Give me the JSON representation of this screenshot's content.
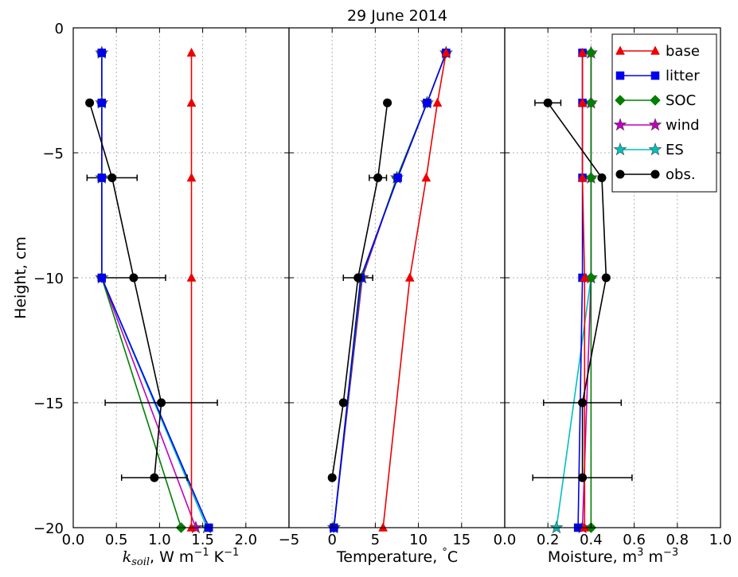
{
  "title": "29 June 2014",
  "ylabel": "Height, cm",
  "yticks": [
    "0",
    "−5",
    "−10",
    "−15",
    "−20"
  ],
  "colors": {
    "base": "#ee0000",
    "litter": "#0000ee",
    "SOC": "#007f00",
    "wind": "#bf00bf",
    "ES": "#00bfbf",
    "obs.": "#000000"
  },
  "legend": [
    "base",
    "litter",
    "SOC",
    "wind",
    "ES",
    "obs."
  ],
  "chart_data": [
    {
      "type": "line",
      "panel": "ksoil",
      "xlabel_math": "k",
      "xlabel_sub": "soil",
      "xlabel_rest": ", W m",
      "xlabel_exp1": "−1",
      "xlabel_mid": " K",
      "xlabel_exp2": "−1",
      "xlim": [
        0,
        2.5
      ],
      "ylim": [
        -20,
        0
      ],
      "xticks": [
        "0.0",
        "0.5",
        "1.0",
        "1.5",
        "2.0"
      ],
      "series": [
        {
          "name": "base",
          "marker": "triangle",
          "x": [
            1.37,
            1.37,
            1.37,
            1.37,
            1.37
          ],
          "y": [
            -1,
            -3,
            -6,
            -10,
            -20
          ]
        },
        {
          "name": "litter",
          "marker": "square",
          "x": [
            0.33,
            0.33,
            0.33,
            0.33,
            1.57
          ],
          "y": [
            -1,
            -3,
            -6,
            -10,
            -20
          ]
        },
        {
          "name": "SOC",
          "marker": "diamond",
          "x": [
            0.33,
            0.33,
            0.33,
            0.33,
            1.25
          ],
          "y": [
            -1,
            -3,
            -6,
            -10,
            -20
          ]
        },
        {
          "name": "wind",
          "marker": "star",
          "x": [
            0.33,
            0.33,
            0.33,
            0.33,
            1.42
          ],
          "y": [
            -1,
            -3,
            -6,
            -10,
            -20
          ]
        },
        {
          "name": "ES",
          "marker": "star",
          "x": [
            0.33,
            0.33,
            0.33,
            0.33,
            1.55
          ],
          "y": [
            -1,
            -3,
            -6,
            -10,
            -20
          ]
        },
        {
          "name": "obs.",
          "marker": "circle",
          "x": [
            0.19,
            0.45,
            0.7,
            1.02,
            0.94
          ],
          "y": [
            -3,
            -6,
            -10,
            -15,
            -18
          ],
          "xerr": [
            0,
            0.29,
            0.37,
            0.65,
            0.38
          ]
        }
      ]
    },
    {
      "type": "line",
      "panel": "temperature",
      "xlabel": "Temperature, ",
      "xlabel_deg": "°",
      "xlabel_unit": "C",
      "xlim": [
        -5,
        20
      ],
      "ylim": [
        -20,
        0
      ],
      "xticks": [
        "−5",
        "0",
        "5",
        "10",
        "15"
      ],
      "series": [
        {
          "name": "base",
          "marker": "triangle",
          "x": [
            13.2,
            12.2,
            10.9,
            9.0,
            5.9
          ],
          "y": [
            -1,
            -3,
            -6,
            -10,
            -20
          ]
        },
        {
          "name": "litter",
          "marker": "square",
          "x": [
            13.2,
            11.0,
            7.6,
            3.3,
            0.2
          ],
          "y": [
            -1,
            -3,
            -6,
            -10,
            -20
          ]
        },
        {
          "name": "SOC",
          "marker": "diamond",
          "x": [
            13.2,
            11.0,
            7.5,
            3.4,
            0.2
          ],
          "y": [
            -1,
            -3,
            -6,
            -10,
            -20
          ]
        },
        {
          "name": "wind",
          "marker": "star",
          "x": [
            13.2,
            11.0,
            7.5,
            3.5,
            0.2
          ],
          "y": [
            -1,
            -3,
            -6,
            -10,
            -20
          ]
        },
        {
          "name": "ES",
          "marker": "star",
          "x": [
            13.2,
            11.0,
            7.5,
            3.5,
            0.2
          ],
          "y": [
            -1,
            -3,
            -6,
            -10,
            -20
          ]
        },
        {
          "name": "obs.",
          "marker": "circle",
          "x": [
            6.4,
            5.3,
            3.0,
            1.3,
            0.0
          ],
          "y": [
            -3,
            -6,
            -10,
            -15,
            -18
          ],
          "xerr": [
            0,
            1.0,
            1.7,
            0,
            0
          ]
        }
      ]
    },
    {
      "type": "line",
      "panel": "moisture",
      "xlabel": "Moisture, m",
      "xlabel_exp1": "3",
      "xlabel_mid": " m",
      "xlabel_exp2": "−3",
      "xlim": [
        0,
        1.0
      ],
      "ylim": [
        -20,
        0
      ],
      "xticks": [
        "0.0",
        "0.2",
        "0.4",
        "0.6",
        "0.8",
        "1.0"
      ],
      "series": [
        {
          "name": "base",
          "marker": "triangle",
          "x": [
            0.36,
            0.36,
            0.36,
            0.37,
            0.37
          ],
          "y": [
            -1,
            -3,
            -6,
            -10,
            -20
          ]
        },
        {
          "name": "litter",
          "marker": "square",
          "x": [
            0.36,
            0.36,
            0.36,
            0.36,
            0.34
          ],
          "y": [
            -1,
            -3,
            -6,
            -10,
            -20
          ]
        },
        {
          "name": "SOC",
          "marker": "diamond",
          "x": [
            0.4,
            0.4,
            0.4,
            0.4,
            0.4
          ],
          "y": [
            -1,
            -3,
            -6,
            -10,
            -20
          ]
        },
        {
          "name": "wind",
          "marker": "star",
          "x": [
            0.4,
            0.4,
            0.4,
            0.4,
            0.36
          ],
          "y": [
            -1,
            -3,
            -6,
            -10,
            -20
          ]
        },
        {
          "name": "ES",
          "marker": "star",
          "x": [
            0.4,
            0.4,
            0.4,
            0.4,
            0.24
          ],
          "y": [
            -1,
            -3,
            -6,
            -10,
            -20
          ]
        },
        {
          "name": "obs.",
          "marker": "circle",
          "x": [
            0.2,
            0.45,
            0.47,
            0.36,
            0.36
          ],
          "y": [
            -3,
            -6,
            -10,
            -15,
            -18
          ],
          "xerr": [
            0.06,
            0,
            0,
            0.18,
            0.23
          ]
        }
      ]
    }
  ]
}
